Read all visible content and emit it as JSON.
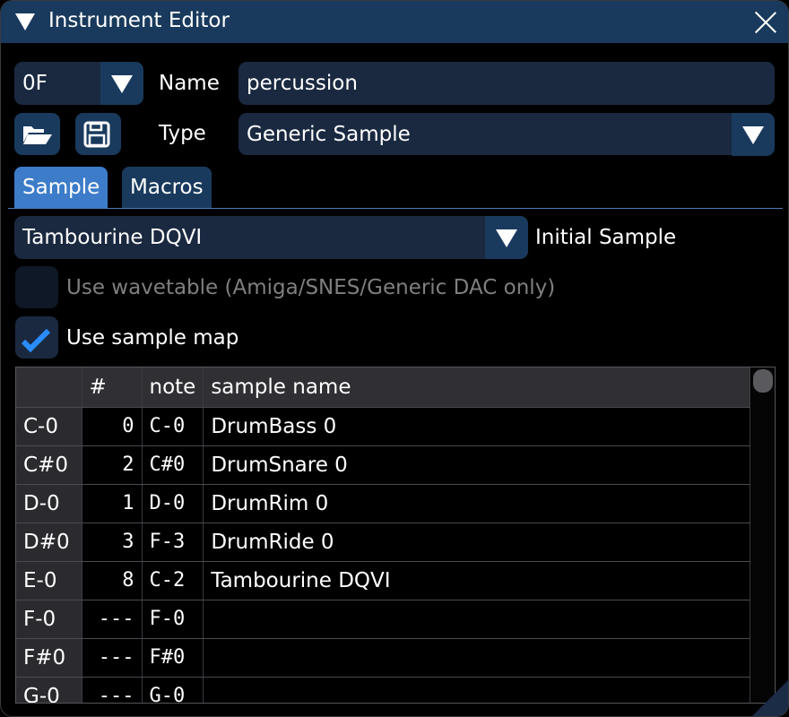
{
  "window": {
    "title": "Instrument Editor",
    "close_icon": "close-icon",
    "collapse_icon": "triangle-down-icon"
  },
  "instrument": {
    "index": "0F",
    "name_label": "Name",
    "name_value": "percussion",
    "type_label": "Type",
    "type_value": "Generic Sample"
  },
  "toolbar": {
    "open_icon": "folder-open-icon",
    "save_icon": "floppy-save-icon"
  },
  "tabs": [
    {
      "label": "Sample",
      "active": true
    },
    {
      "label": "Macros",
      "active": false
    }
  ],
  "sample": {
    "selected": "Tambourine DQVI",
    "label": "Initial Sample"
  },
  "options": {
    "wavetable": {
      "label": "Use wavetable (Amiga/SNES/Generic DAC only)",
      "checked": false,
      "disabled": true
    },
    "sample_map": {
      "label": "Use sample map",
      "checked": true
    }
  },
  "colors": {
    "accent": "#3d7cc9",
    "titlebar": "#193a5d",
    "field": "#1a2940",
    "check": "#2a8cff"
  },
  "table": {
    "headers": [
      "",
      "#",
      "note",
      "sample name"
    ],
    "rows": [
      {
        "key": "C-0",
        "num": "0",
        "note": "C-0",
        "name": "DrumBass 0"
      },
      {
        "key": "C#0",
        "num": "2",
        "note": "C#0",
        "name": "DrumSnare 0"
      },
      {
        "key": "D-0",
        "num": "1",
        "note": "D-0",
        "name": "DrumRim 0"
      },
      {
        "key": "D#0",
        "num": "3",
        "note": "F-3",
        "name": "DrumRide 0"
      },
      {
        "key": "E-0",
        "num": "8",
        "note": "C-2",
        "name": "Tambourine DQVI"
      },
      {
        "key": "F-0",
        "num": "---",
        "note": "F-0",
        "name": ""
      },
      {
        "key": "F#0",
        "num": "---",
        "note": "F#0",
        "name": ""
      },
      {
        "key": "G-0",
        "num": "---",
        "note": "G-0",
        "name": ""
      }
    ]
  }
}
